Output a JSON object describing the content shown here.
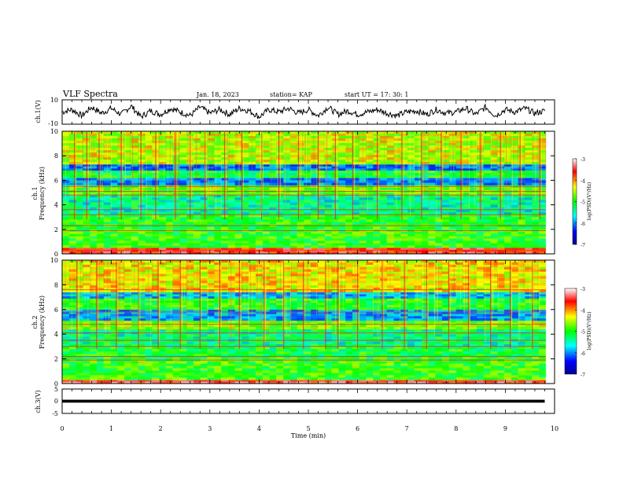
{
  "header": {
    "title": "VLF Spectra",
    "date": "Jan. 18, 2023",
    "station": "station= KAP",
    "start": "start  UT =   17: 30: 1"
  },
  "chart_data": [
    {
      "type": "line",
      "panel": "ch1-waveform",
      "ylabel": "ch.1(V)",
      "ylim": [
        -10,
        10
      ],
      "ytick_labels": [
        "10",
        "-10"
      ],
      "xlim": [
        0,
        10
      ],
      "x": [
        0,
        0.2,
        0.4,
        0.6,
        0.8,
        1.0,
        1.2,
        1.4,
        1.6,
        1.8,
        2.0,
        2.2,
        2.4,
        2.6,
        2.8,
        3.0,
        3.2,
        3.4,
        3.6,
        3.8,
        4.0,
        4.2,
        4.4,
        4.6,
        4.8,
        5.0,
        5.2,
        5.4,
        5.6,
        5.8,
        6.0,
        6.2,
        6.4,
        6.6,
        6.8,
        7.0,
        7.2,
        7.4,
        7.6,
        7.8,
        8.0,
        8.2,
        8.4,
        8.6,
        8.8,
        9.0,
        9.2,
        9.4,
        9.6,
        9.8
      ],
      "y": [
        0,
        2,
        -3,
        4,
        -1,
        3,
        -2,
        5,
        -4,
        1,
        -2,
        3,
        0,
        -3,
        4,
        -1,
        2,
        -2,
        3,
        1,
        -4,
        2,
        0,
        3,
        -1,
        2,
        -3,
        4,
        -2,
        1,
        -2,
        0,
        2,
        -1,
        -3,
        0,
        1,
        -2,
        2,
        -1,
        0,
        3,
        -2,
        4,
        -3,
        2,
        0,
        3,
        -1,
        1
      ]
    },
    {
      "type": "heatmap",
      "panel": "ch1-spectrogram",
      "ylabel": "ch.1\nFrequency (kHz)",
      "ylabel_line1": "ch.1",
      "ylabel_line2": "Frequency (kHz)",
      "ylim": [
        0,
        10
      ],
      "xlim": [
        0,
        10
      ],
      "ytick_labels": [
        "0",
        "2",
        "4",
        "6",
        "8",
        "10"
      ],
      "colorbar": {
        "min": -7,
        "max": -3,
        "tick_labels": [
          "-3",
          "-4",
          "-5",
          "-6",
          "-7"
        ],
        "label": "log(PSD)(V²/Hz)"
      },
      "bands_khz": [
        {
          "from": 0.0,
          "to": 0.5,
          "level": -3.6
        },
        {
          "from": 0.5,
          "to": 2.0,
          "level": -4.9
        },
        {
          "from": 2.0,
          "to": 3.2,
          "level": -5.0
        },
        {
          "from": 3.2,
          "to": 4.8,
          "level": -5.4
        },
        {
          "from": 4.8,
          "to": 5.6,
          "level": -4.8
        },
        {
          "from": 5.6,
          "to": 6.2,
          "level": -6.0
        },
        {
          "from": 6.2,
          "to": 6.8,
          "level": -5.1
        },
        {
          "from": 6.8,
          "to": 7.3,
          "level": -6.1
        },
        {
          "from": 7.3,
          "to": 10.0,
          "level": -4.5
        }
      ],
      "lines_khz": [
        0.3,
        1.9,
        2.3,
        3.2,
        3.6,
        4.8,
        5.1,
        5.5
      ],
      "bursts_min": [
        0.25,
        0.5,
        0.75,
        1.2,
        1.6,
        1.9,
        2.3,
        2.6,
        2.9,
        3.3,
        3.65,
        4.05,
        4.4,
        4.8,
        5.2,
        5.55,
        5.9,
        6.4,
        6.9,
        7.3,
        7.7,
        8.1,
        8.5,
        8.9,
        9.3,
        9.7
      ]
    },
    {
      "type": "heatmap",
      "panel": "ch2-spectrogram",
      "ylabel": "ch.2\nFrequency (kHz)",
      "ylabel_line1": "ch.2",
      "ylabel_line2": "Frequency (kHz)",
      "ylim": [
        0,
        10
      ],
      "xlim": [
        0,
        10
      ],
      "ytick_labels": [
        "0",
        "2",
        "4",
        "6",
        "8",
        "10"
      ],
      "colorbar": {
        "min": -7,
        "max": -3,
        "tick_labels": [
          "-3",
          "-4",
          "-5",
          "-6",
          "-7"
        ],
        "label": "log(PSD)(V²/Hz)"
      },
      "bands_khz": [
        {
          "from": 0.0,
          "to": 0.3,
          "level": -3.4
        },
        {
          "from": 0.3,
          "to": 2.0,
          "level": -4.9
        },
        {
          "from": 2.0,
          "to": 3.0,
          "level": -5.1
        },
        {
          "from": 3.0,
          "to": 4.4,
          "level": -5.3
        },
        {
          "from": 4.4,
          "to": 5.1,
          "level": -4.7
        },
        {
          "from": 5.1,
          "to": 6.0,
          "level": -5.9
        },
        {
          "from": 6.0,
          "to": 6.9,
          "level": -5.0
        },
        {
          "from": 6.9,
          "to": 7.4,
          "level": -5.8
        },
        {
          "from": 7.4,
          "to": 10.0,
          "level": -4.3
        }
      ],
      "lines_khz": [
        0.2,
        1.9,
        2.2,
        3.0,
        3.5,
        4.1,
        4.8,
        5.8,
        7.6
      ],
      "bursts_min": [
        0.3,
        0.7,
        1.1,
        1.55,
        1.95,
        2.4,
        2.8,
        3.2,
        3.6,
        4.1,
        4.5,
        4.9,
        5.35,
        5.6,
        6.0,
        6.5,
        6.95,
        7.4,
        7.85,
        8.25,
        8.7,
        9.1,
        9.55
      ]
    },
    {
      "type": "line",
      "panel": "ch3-waveform",
      "ylabel": "ch.3(V)",
      "ylim": [
        -5,
        5
      ],
      "ytick_labels": [
        "5",
        "0",
        "-5"
      ],
      "xlim": [
        0,
        10
      ],
      "xlabel": "Time (min)",
      "xtick_labels": [
        "0",
        "1",
        "2",
        "3",
        "4",
        "5",
        "6",
        "7",
        "8",
        "9",
        "10"
      ],
      "x": [
        0,
        9.8
      ],
      "y": [
        0,
        0
      ],
      "band_halfwidth_v": 0.6
    }
  ]
}
